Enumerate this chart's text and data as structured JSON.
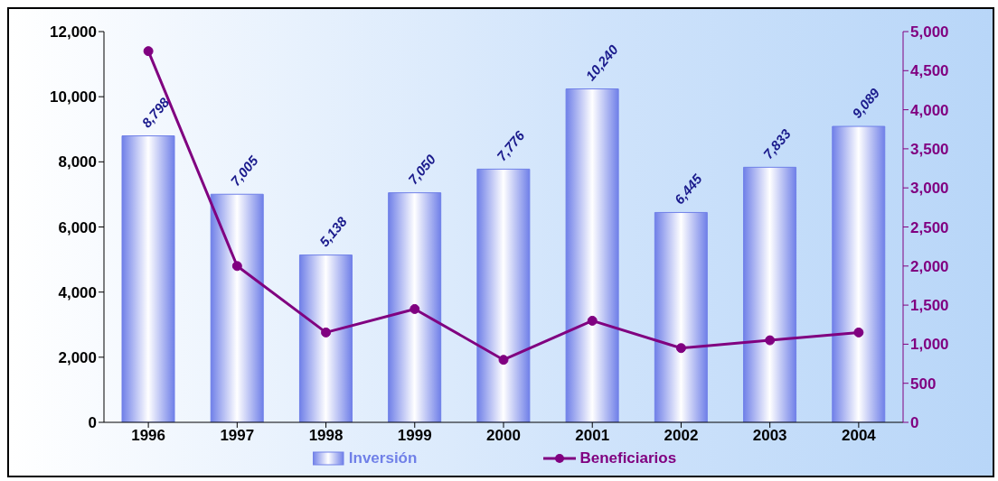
{
  "chart_data": {
    "type": "bar",
    "categories": [
      "1996",
      "1997",
      "1998",
      "1999",
      "2000",
      "2001",
      "2002",
      "2003",
      "2004"
    ],
    "series": [
      {
        "name": "Inversión",
        "color": "#7080e8",
        "values": [
          8798,
          7005,
          5138,
          7050,
          7776,
          10240,
          6445,
          7833,
          9089
        ],
        "value_labels": [
          "8,798",
          "7,005",
          "5,138",
          "7,050",
          "7,776",
          "10,240",
          "6,445",
          "7,833",
          "9,089"
        ]
      },
      {
        "name": "Beneficiarios",
        "type": "line",
        "axis": "y2",
        "color": "#800080",
        "values": [
          4750,
          2000,
          1150,
          1450,
          800,
          1300,
          950,
          1050,
          1150
        ]
      }
    ],
    "ylim": [
      0,
      12000
    ],
    "yticks": [
      0,
      {
        "value": 2000,
        "label": "2,000"
      },
      {
        "value": 4000,
        "label": "4,000"
      },
      {
        "value": 6000,
        "label": "6,000"
      },
      {
        "value": 8000,
        "label": "8,000"
      },
      {
        "value": 10000,
        "label": "10,000"
      },
      {
        "value": 12000,
        "label": "12,000"
      }
    ],
    "y2lim": [
      0,
      5000
    ],
    "y2ticks": [
      0,
      500,
      {
        "value": 1000,
        "label": "1,000"
      },
      {
        "value": 1500,
        "label": "1,500"
      },
      {
        "value": 2000,
        "label": "2,000"
      },
      {
        "value": 2500,
        "label": "2,500"
      },
      {
        "value": 3000,
        "label": "3,000"
      },
      {
        "value": 3500,
        "label": "3,500"
      },
      {
        "value": 4000,
        "label": "4,000"
      },
      {
        "value": 4500,
        "label": "4,500"
      },
      {
        "value": 5000,
        "label": "5,000"
      }
    ],
    "legend": "bottom",
    "marker": "circle",
    "line_style": "solid"
  }
}
